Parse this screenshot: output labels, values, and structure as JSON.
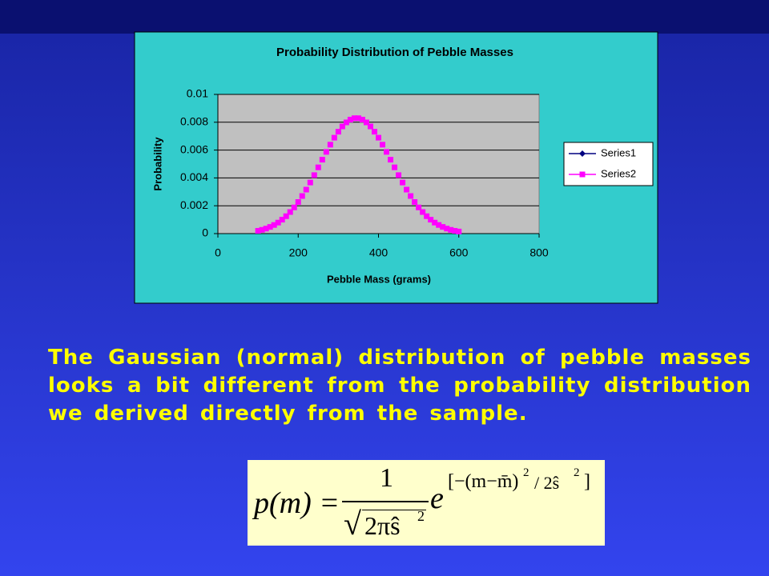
{
  "chart_data": {
    "type": "scatter",
    "title": "Probability Distribution of Pebble Masses",
    "x_label": "Pebble Mass (grams)",
    "y_label": "Probability",
    "xlim": [
      0,
      800
    ],
    "xticks": [
      0,
      200,
      400,
      600,
      800
    ],
    "ylim": [
      0,
      0.01
    ],
    "yticks": [
      0,
      0.002,
      0.004,
      0.006,
      0.008,
      0.01
    ],
    "grid": true,
    "legend": "right",
    "series": [
      {
        "name": "Series1",
        "color": "#000080",
        "marker": "diamond",
        "x": [],
        "values": []
      },
      {
        "name": "Series2",
        "color": "#ff00ff",
        "marker": "square",
        "x": [
          100,
          110,
          120,
          130,
          140,
          150,
          160,
          170,
          180,
          190,
          200,
          210,
          220,
          230,
          240,
          250,
          260,
          270,
          280,
          290,
          300,
          310,
          320,
          330,
          340,
          350,
          360,
          370,
          380,
          390,
          400,
          410,
          420,
          430,
          440,
          450,
          460,
          470,
          480,
          490,
          500,
          510,
          520,
          530,
          540,
          550,
          560,
          570,
          580,
          590,
          600
        ],
        "values": [
          0.0002,
          0.00027,
          0.00036,
          0.00048,
          0.00062,
          0.00079,
          0.001,
          0.00125,
          0.00155,
          0.00188,
          0.00227,
          0.0027,
          0.00316,
          0.00367,
          0.0042,
          0.00476,
          0.00531,
          0.00587,
          0.00639,
          0.00689,
          0.00732,
          0.0077,
          0.00799,
          0.00819,
          0.00829,
          0.00829,
          0.00819,
          0.00799,
          0.0077,
          0.00732,
          0.00689,
          0.00639,
          0.00587,
          0.00531,
          0.00476,
          0.0042,
          0.00367,
          0.00316,
          0.0027,
          0.00227,
          0.00188,
          0.00155,
          0.00125,
          0.001,
          0.00079,
          0.00062,
          0.00048,
          0.00036,
          0.00027,
          0.0002,
          0.00015
        ]
      }
    ]
  },
  "body": {
    "paragraph": "The Gaussian (normal) distribution of pebble masses looks a bit different from the probability distribution we derived directly from the sample.",
    "formula": {
      "lhs": "p(m) =",
      "numerator": "1",
      "radicand": "2πŝ",
      "radicand_exp": "2",
      "base": "e",
      "exponent": "[−(m−m̄)",
      "exp_sq": "2",
      "exp_rest": "/ 2ŝ",
      "exp_sq2": "2",
      "exp_end": "]"
    }
  }
}
